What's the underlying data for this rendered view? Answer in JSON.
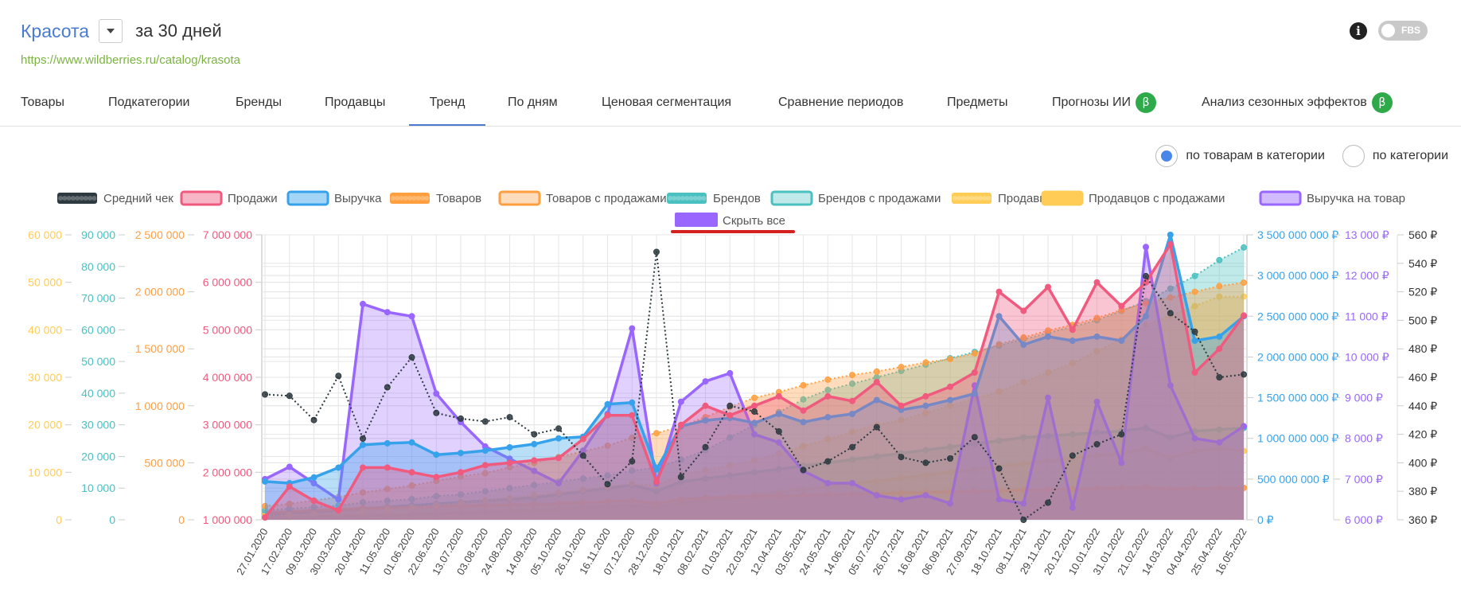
{
  "header": {
    "category_title": "Красота",
    "period": "за 30 дней",
    "url": "https://www.wildberries.ru/catalog/krasota",
    "info_icon": "info-icon",
    "fbs_label": "FBS"
  },
  "tabs": [
    {
      "label": "Товары",
      "beta": false
    },
    {
      "label": "Подкатегории",
      "beta": false
    },
    {
      "label": "Бренды",
      "beta": false
    },
    {
      "label": "Продавцы",
      "beta": false
    },
    {
      "label": "Тренд",
      "beta": false,
      "active": true
    },
    {
      "label": "По дням",
      "beta": false
    },
    {
      "label": "Ценовая сегментация",
      "beta": false
    },
    {
      "label": "Сравнение периодов",
      "beta": false
    },
    {
      "label": "Предметы",
      "beta": false
    },
    {
      "label": "Прогнозы ИИ",
      "beta": true
    },
    {
      "label": "Анализ сезонных эффектов",
      "beta": true
    }
  ],
  "beta_symbol": "β",
  "radio": {
    "options": [
      "по товарам в категории",
      "по категории"
    ],
    "selected": 0
  },
  "legend": [
    {
      "label": "Средний чек",
      "color": "#2d3a40",
      "style": "dotted-dark"
    },
    {
      "label": "Продажи",
      "color": "#f05a7e",
      "style": "box"
    },
    {
      "label": "Выручка",
      "color": "#36a2eb",
      "style": "box"
    },
    {
      "label": "Товаров",
      "color": "#ff9f40",
      "style": "dotted"
    },
    {
      "label": "Товаров с продажами",
      "color": "#ff9f40",
      "style": "box-light"
    },
    {
      "label": "Брендов",
      "color": "#4bc0c0",
      "style": "dotted"
    },
    {
      "label": "Брендов с продажами",
      "color": "#4bc0c0",
      "style": "box-light"
    },
    {
      "label": "Продавцов",
      "color": "#ffcd56",
      "style": "dotted"
    },
    {
      "label": "Продавцов с продажами",
      "color": "#ffcd56",
      "style": "box-solid"
    },
    {
      "label": "Выручка на товар",
      "color": "#9966ff",
      "style": "box"
    }
  ],
  "hide_all": {
    "label": "Скрыть все",
    "color": "#9966ff",
    "underline": "#d61f1f"
  },
  "chart_data": {
    "type": "line",
    "x_labels": [
      "27.01.2020",
      "17.02.2020",
      "09.03.2020",
      "30.03.2020",
      "20.04.2020",
      "11.05.2020",
      "01.06.2020",
      "22.06.2020",
      "13.07.2020",
      "03.08.2020",
      "24.08.2020",
      "14.09.2020",
      "05.10.2020",
      "26.10.2020",
      "16.11.2020",
      "07.12.2020",
      "28.12.2020",
      "18.01.2021",
      "08.02.2021",
      "01.03.2021",
      "22.03.2021",
      "12.04.2021",
      "03.05.2021",
      "24.05.2021",
      "14.06.2021",
      "05.07.2021",
      "26.07.2021",
      "16.08.2021",
      "06.09.2021",
      "27.09.2021",
      "18.10.2021",
      "08.11.2021",
      "29.11.2021",
      "20.12.2021",
      "10.01.2022",
      "31.01.2022",
      "21.02.2022",
      "14.03.2022",
      "04.04.2022",
      "25.04.2022",
      "16.05.2022"
    ],
    "grid": true,
    "axes": {
      "sellers": {
        "ticks": [
          "60 000",
          "50 000",
          "40 000",
          "30 000",
          "20 000",
          "10 000",
          "0"
        ],
        "color": "#ffcd56",
        "min": 0,
        "max": 60000
      },
      "brands": {
        "ticks": [
          "90 000",
          "80 000",
          "70 000",
          "60 000",
          "50 000",
          "40 000",
          "30 000",
          "20 000",
          "10 000",
          "0"
        ],
        "color": "#4bc0c0",
        "min": 0,
        "max": 90000
      },
      "products": {
        "ticks": [
          "2 500 000",
          "2 000 000",
          "1 500 000",
          "1 000 000",
          "500 000",
          "0"
        ],
        "color": "#ff9f40",
        "min": 0,
        "max": 2500000
      },
      "sales": {
        "ticks": [
          "7 000 000",
          "6 000 000",
          "5 000 000",
          "4 000 000",
          "3 000 000",
          "2 000 000",
          "1 000 000"
        ],
        "color": "#f05a7e",
        "min": 1000000,
        "max": 7000000
      },
      "revenue": {
        "ticks": [
          "3 500 000 000 ₽",
          "3 000 000 000 ₽",
          "2 500 000 000 ₽",
          "2 000 000 000 ₽",
          "1 500 000 000 ₽",
          "1 000 000 000 ₽",
          "500 000 000 ₽",
          "0 ₽"
        ],
        "color": "#36a2eb",
        "min": 0,
        "max": 3500000000
      },
      "rev_per_item": {
        "ticks": [
          "13 000 ₽",
          "12 000 ₽",
          "11 000 ₽",
          "10 000 ₽",
          "9 000 ₽",
          "8 000 ₽",
          "7 000 ₽",
          "6 000 ₽"
        ],
        "color": "#9966ff",
        "min": 6000,
        "max": 13000
      },
      "avg_check": {
        "ticks": [
          "560 ₽",
          "540 ₽",
          "520 ₽",
          "500 ₽",
          "480 ₽",
          "460 ₽",
          "440 ₽",
          "420 ₽",
          "400 ₽",
          "380 ₽",
          "360 ₽"
        ],
        "color": "#333333",
        "min": 360,
        "max": 560
      }
    },
    "series_keyframes_note_free": true,
    "series": [
      {
        "name": "Выручка на товар",
        "axis": "rev_per_item",
        "color": "#9966ff",
        "fill": true,
        "values": [
          7000,
          7300,
          6900,
          6500,
          11300,
          11100,
          11000,
          9100,
          8400,
          7800,
          7500,
          7200,
          6900,
          7700,
          8600,
          10700,
          6900,
          8900,
          9400,
          9600,
          8100,
          7900,
          7200,
          6900,
          6900,
          6600,
          6500,
          6600,
          6400,
          9300,
          6500,
          6400,
          9000,
          6300,
          8900,
          7400,
          12700,
          9300,
          8000,
          7900,
          8300
        ]
      },
      {
        "name": "Продажи",
        "axis": "sales",
        "color": "#f05a7e",
        "fill": true,
        "values": [
          1050,
          1700,
          1400,
          1200,
          2100,
          2100,
          2000,
          1900,
          2000,
          2150,
          2200,
          2250,
          2300,
          2700,
          3200,
          3200,
          1800,
          3000,
          3400,
          3200,
          3400,
          3600,
          3300,
          3600,
          3500,
          3900,
          3400,
          3600,
          3800,
          4100,
          5800,
          5400,
          5900,
          5000,
          6000,
          5500,
          6000,
          6800,
          4100,
          4600,
          5300
        ]
      },
      {
        "name": "Выручка",
        "axis": "revenue",
        "color": "#36a2eb",
        "fill": true,
        "values": [
          470,
          450,
          520,
          640,
          920,
          940,
          950,
          800,
          820,
          850,
          890,
          930,
          1000,
          1020,
          1420,
          1440,
          620,
          1150,
          1220,
          1250,
          1190,
          1300,
          1200,
          1260,
          1300,
          1470,
          1350,
          1400,
          1470,
          1550,
          2500,
          2150,
          2250,
          2200,
          2250,
          2200,
          2500,
          3500,
          2200,
          2250,
          2500
        ]
      },
      {
        "name": "Средний чек",
        "axis": "avg_check",
        "color": "#2d3a40",
        "fill": false,
        "dotted": true,
        "values": [
          448,
          447,
          430,
          461,
          417,
          453,
          474,
          435,
          431,
          429,
          432,
          420,
          424,
          405,
          385,
          401,
          548,
          390,
          411,
          440,
          436,
          422,
          395,
          401,
          411,
          425,
          404,
          400,
          403,
          418,
          396,
          357,
          372,
          405,
          413,
          420,
          531,
          505,
          492,
          460,
          462
        ]
      },
      {
        "name": "Товаров",
        "axis": "products",
        "color": "#ff9f40",
        "fill": true,
        "dotted": true,
        "values": [
          120000,
          140000,
          170000,
          200000,
          240000,
          270000,
          300000,
          340000,
          380000,
          410000,
          460000,
          500000,
          550000,
          600000,
          650000,
          720000,
          760000,
          820000,
          900000,
          990000,
          1070000,
          1120000,
          1180000,
          1230000,
          1270000,
          1300000,
          1340000,
          1380000,
          1410000,
          1460000,
          1540000,
          1600000,
          1660000,
          1710000,
          1770000,
          1840000,
          1900000,
          1950000,
          2000000,
          2050000,
          2080000
        ]
      },
      {
        "name": "Брендов",
        "axis": "brands",
        "color": "#4bc0c0",
        "fill": true,
        "dotted": true,
        "values": [
          3000,
          3500,
          4000,
          4500,
          5500,
          6000,
          6500,
          7500,
          8000,
          9000,
          10000,
          11000,
          12000,
          13000,
          14000,
          15500,
          16500,
          19000,
          22000,
          26000,
          30000,
          34000,
          38000,
          41000,
          43000,
          45000,
          47000,
          49000,
          51000,
          53000,
          55000,
          57000,
          59000,
          61000,
          63000,
          66000,
          69000,
          73000,
          77000,
          82000,
          86000
        ]
      },
      {
        "name": "Продавцов",
        "axis": "sellers",
        "color": "#ffcd56",
        "fill": true,
        "dotted": true,
        "values": [
          800,
          1000,
          1200,
          1500,
          1800,
          2200,
          2600,
          3100,
          3600,
          4100,
          4600,
          5200,
          5700,
          6300,
          6900,
          7600,
          7200,
          9500,
          10500,
          11500,
          12500,
          14000,
          15500,
          17000,
          18500,
          20000,
          21000,
          22500,
          24000,
          25500,
          27000,
          29000,
          31000,
          33000,
          35500,
          38000,
          41000,
          43000,
          45000,
          47000,
          47000
        ]
      },
      {
        "name": "Товаров с продажами",
        "axis": "products",
        "color": "#ff9f40",
        "fill": true,
        "values": [
          60000,
          70000,
          80000,
          90000,
          100000,
          105000,
          110000,
          115000,
          120000,
          125000,
          130000,
          135000,
          140000,
          150000,
          160000,
          170000,
          140000,
          180000,
          190000,
          200000,
          205000,
          210000,
          215000,
          220000,
          225000,
          230000,
          235000,
          240000,
          245000,
          250000,
          255000,
          260000,
          265000,
          270000,
          275000,
          280000,
          285000,
          270000,
          275000,
          275000,
          280000
        ]
      },
      {
        "name": "Брендов с продажами",
        "axis": "brands",
        "color": "#4bc0c0",
        "fill": true,
        "values": [
          1500,
          2000,
          2500,
          3000,
          3500,
          4000,
          4500,
          5000,
          5500,
          6000,
          6500,
          7000,
          8000,
          9000,
          10000,
          11000,
          9000,
          12000,
          13000,
          14000,
          15000,
          16000,
          17000,
          18000,
          19000,
          20000,
          21000,
          22000,
          23000,
          24000,
          25000,
          26000,
          26500,
          27000,
          27500,
          28000,
          29000,
          26000,
          28000,
          28500,
          29000
        ]
      },
      {
        "name": "Продавцов с продажами",
        "axis": "sellers",
        "color": "#ffcd56",
        "fill": true,
        "values": [
          500,
          600,
          700,
          800,
          900,
          1000,
          1100,
          1200,
          1400,
          1600,
          1800,
          2000,
          2200,
          2500,
          2800,
          3100,
          2500,
          3500,
          4000,
          4600,
          5200,
          5800,
          6400,
          7000,
          7600,
          8200,
          8800,
          9400,
          10000,
          10600,
          11200,
          11800,
          12400,
          13000,
          13600,
          14000,
          15000,
          13000,
          14500,
          15000,
          14500
        ]
      }
    ]
  }
}
